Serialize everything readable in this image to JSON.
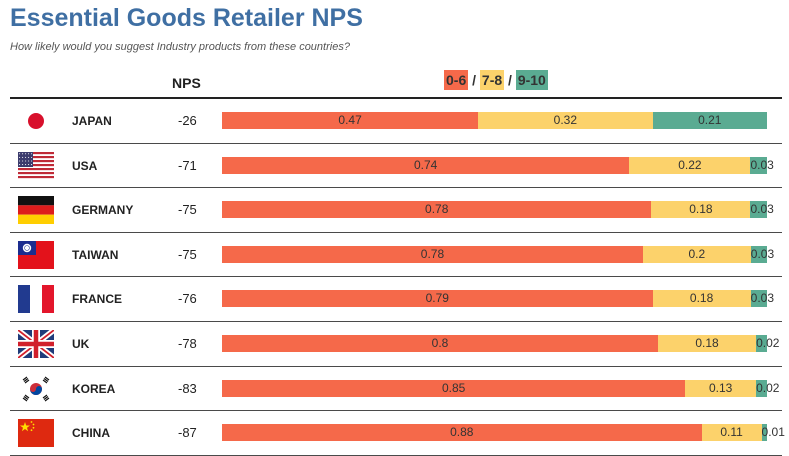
{
  "title": "Essential Goods Retailer NPS",
  "subtitle": "How likely would you suggest Industry products from these countries?",
  "header": {
    "nps_label": "NPS",
    "legend": [
      {
        "label": "0-6",
        "color": "#f5694a"
      },
      {
        "label": "7-8",
        "color": "#fcd26b"
      },
      {
        "label": "9-10",
        "color": "#5aab92"
      }
    ],
    "legend_separator": " / "
  },
  "colors": {
    "detractor": "#f5694a",
    "passive": "#fcd26b",
    "promoter": "#5aab92",
    "title": "#3f6fa3"
  },
  "rows": [
    {
      "country": "JAPAN",
      "flag_icon": "japan-flag-icon",
      "nps": "-26",
      "values": [
        "0.47",
        "0.32",
        "0.21"
      ]
    },
    {
      "country": "USA",
      "flag_icon": "usa-flag-icon",
      "nps": "-71",
      "values": [
        "0.74",
        "0.22",
        "0.03"
      ]
    },
    {
      "country": "GERMANY",
      "flag_icon": "germany-flag-icon",
      "nps": "-75",
      "values": [
        "0.78",
        "0.18",
        "0.03"
      ]
    },
    {
      "country": "TAIWAN",
      "flag_icon": "taiwan-flag-icon",
      "nps": "-75",
      "values": [
        "0.78",
        "0.2",
        "0.03"
      ]
    },
    {
      "country": "FRANCE",
      "flag_icon": "france-flag-icon",
      "nps": "-76",
      "values": [
        "0.79",
        "0.18",
        "0.03"
      ]
    },
    {
      "country": "UK",
      "flag_icon": "uk-flag-icon",
      "nps": "-78",
      "values": [
        "0.8",
        "0.18",
        "0.02"
      ]
    },
    {
      "country": "KOREA",
      "flag_icon": "korea-flag-icon",
      "nps": "-83",
      "values": [
        "0.85",
        "0.13",
        "0.02"
      ]
    },
    {
      "country": "CHINA",
      "flag_icon": "china-flag-icon",
      "nps": "-87",
      "values": [
        "0.88",
        "0.11",
        "0.01"
      ]
    }
  ],
  "chart_data": {
    "type": "bar",
    "stacked": true,
    "orientation": "horizontal",
    "title": "Essential Goods Retailer NPS",
    "subtitle": "How likely would you suggest Industry products from these countries?",
    "categories": [
      "JAPAN",
      "USA",
      "GERMANY",
      "TAIWAN",
      "FRANCE",
      "UK",
      "KOREA",
      "CHINA"
    ],
    "nps": [
      -26,
      -71,
      -75,
      -75,
      -76,
      -78,
      -83,
      -87
    ],
    "series": [
      {
        "name": "0-6",
        "color": "#f5694a",
        "values": [
          0.47,
          0.74,
          0.78,
          0.78,
          0.79,
          0.8,
          0.85,
          0.88
        ]
      },
      {
        "name": "7-8",
        "color": "#fcd26b",
        "values": [
          0.32,
          0.22,
          0.18,
          0.2,
          0.18,
          0.18,
          0.13,
          0.11
        ]
      },
      {
        "name": "9-10",
        "color": "#5aab92",
        "values": [
          0.21,
          0.03,
          0.03,
          0.03,
          0.03,
          0.02,
          0.02,
          0.01
        ]
      }
    ],
    "legend": "top-center",
    "grid": false
  }
}
